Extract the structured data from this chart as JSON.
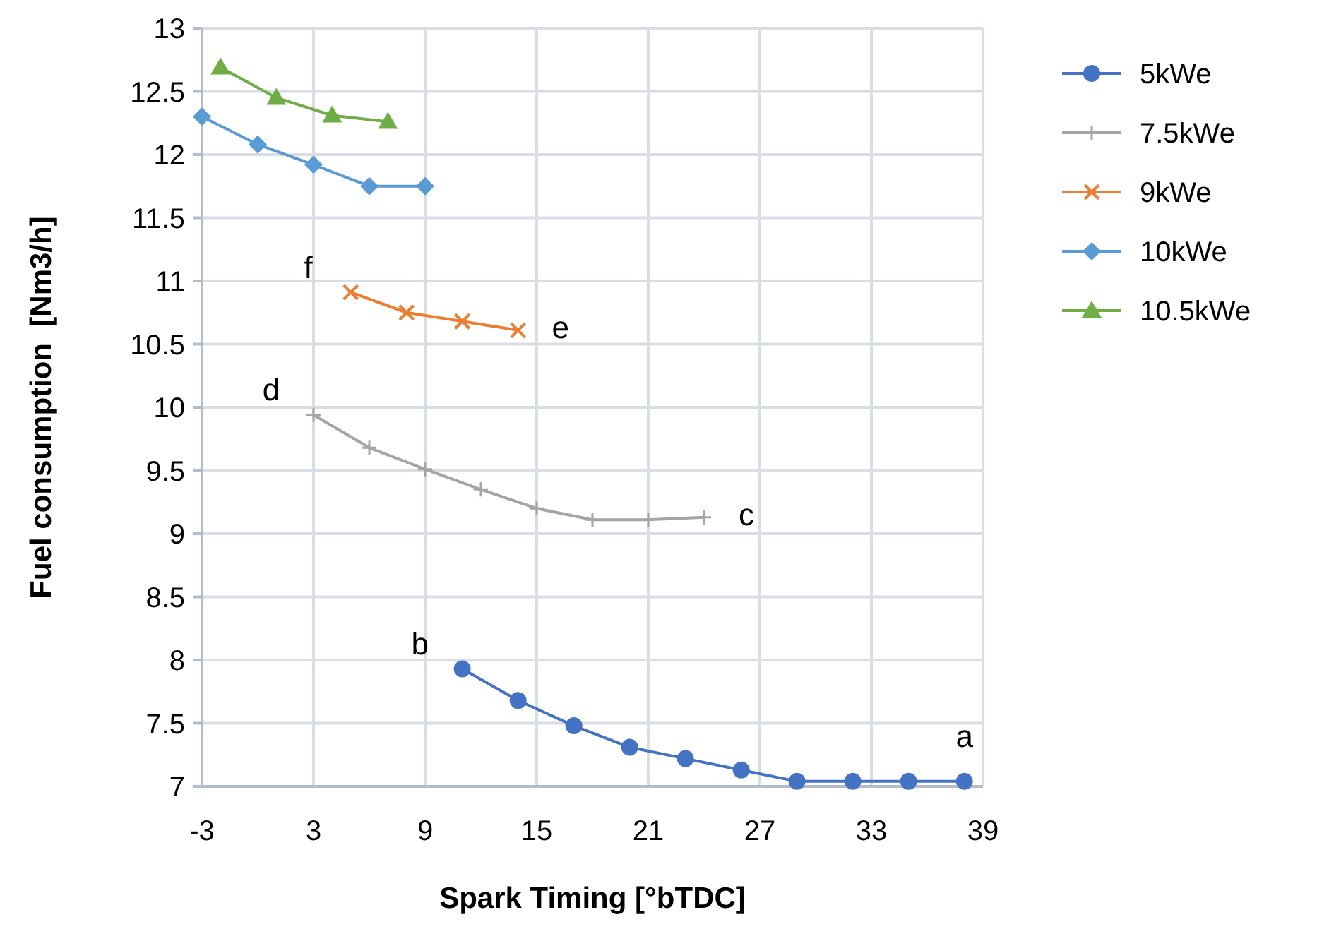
{
  "chart_data": {
    "type": "line",
    "xlabel": "Spark Timing [°bTDC]",
    "ylabel": "Fuel consumption  [Nm3/h]",
    "xlim": [
      -3,
      39
    ],
    "xticks": [
      -3,
      3,
      9,
      15,
      21,
      27,
      33,
      39
    ],
    "ylim": [
      7,
      13
    ],
    "yticks": [
      7,
      {
        "value": 7.5,
        "label": "7.5"
      },
      8,
      {
        "value": 8.5,
        "label": "8.5"
      },
      9,
      {
        "value": 9.5,
        "label": "9.5"
      },
      10,
      {
        "value": 10.5,
        "label": "10.5"
      },
      11,
      {
        "value": 11.5,
        "label": "11.5"
      },
      12,
      {
        "value": 12.5,
        "label": "12.5"
      },
      13
    ],
    "grid": true,
    "legend": "right",
    "series": [
      {
        "name": "5kWe",
        "color": "#4472c4",
        "marker": "circle",
        "x": [
          11,
          14,
          17,
          20,
          23,
          26,
          29,
          32,
          35,
          38
        ],
        "values": [
          7.93,
          7.68,
          7.48,
          7.31,
          7.22,
          7.13,
          7.04,
          7.04,
          7.04,
          7.04
        ]
      },
      {
        "name": "7.5kWe",
        "color": "#a5a5a5",
        "marker": "plus",
        "x": [
          3,
          6,
          9,
          12,
          15,
          18,
          21,
          24
        ],
        "values": [
          9.94,
          9.68,
          9.51,
          9.35,
          9.2,
          9.11,
          9.11,
          9.13
        ]
      },
      {
        "name": "9kWe",
        "color": "#ed7d31",
        "marker": "cross",
        "x": [
          5,
          8,
          11,
          14
        ],
        "values": [
          10.91,
          10.75,
          10.68,
          10.61
        ]
      },
      {
        "name": "10kWe",
        "color": "#5b9bd5",
        "marker": "diamond",
        "x": [
          -3,
          0,
          3,
          6,
          9
        ],
        "values": [
          12.3,
          12.08,
          11.92,
          11.75,
          11.75
        ]
      },
      {
        "name": "10.5kWe",
        "color": "#70ad47",
        "marker": "triangle",
        "x": [
          -2,
          1,
          4,
          7
        ],
        "values": [
          12.69,
          12.45,
          12.31,
          12.26
        ]
      }
    ],
    "annotations": [
      {
        "text": "a",
        "x": 38,
        "y": 7.04
      },
      {
        "text": "b",
        "x": 11,
        "y": 7.93
      },
      {
        "text": "c",
        "x": 24,
        "y": 9.13
      },
      {
        "text": "d",
        "x": 3,
        "y": 9.94
      },
      {
        "text": "f",
        "x": 5,
        "y": 10.91
      },
      {
        "text": "e",
        "x": 14,
        "y": 10.61
      }
    ]
  }
}
